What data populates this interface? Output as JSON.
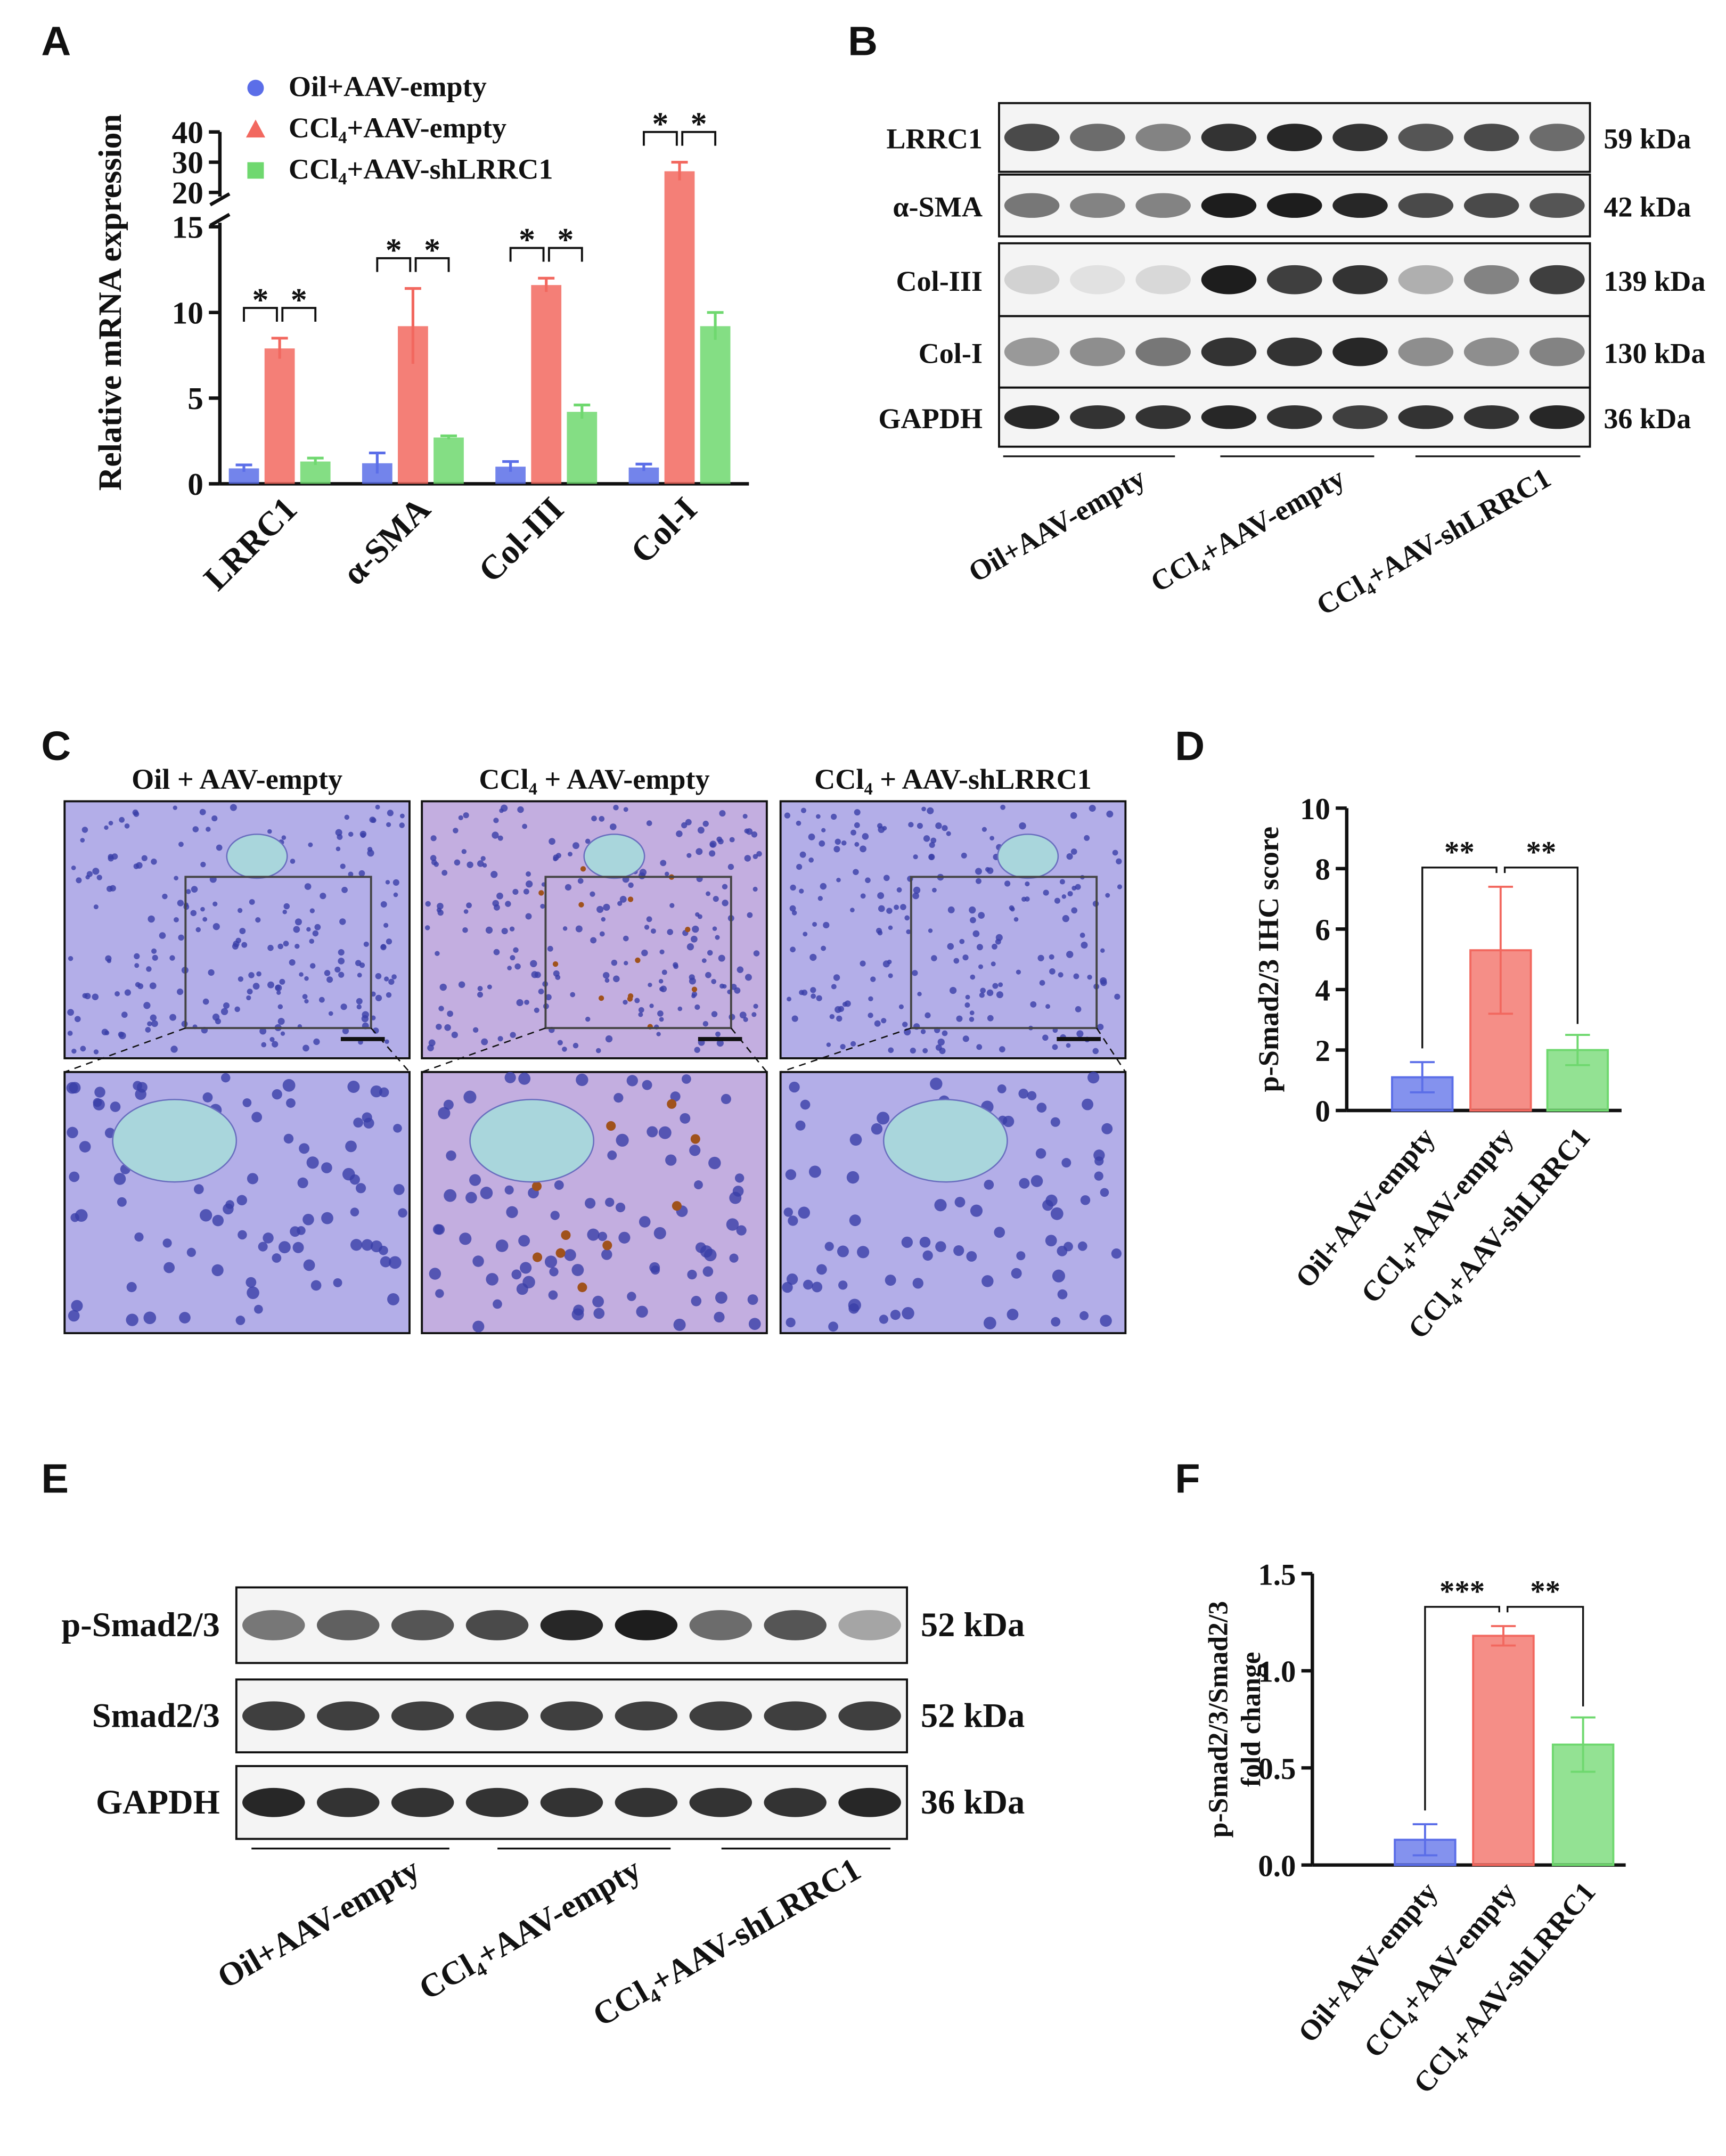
{
  "panel_labels": [
    "A",
    "B",
    "C",
    "D",
    "E",
    "F"
  ],
  "chart_data": [
    {
      "type": "grouped_bar",
      "y_label": "Relative mRNA expression",
      "categories": [
        "LRRC1",
        "α-SMA",
        "Col-III",
        "Col-I"
      ],
      "series": [
        {
          "name": "Oil+AAV-empty",
          "color": "#5b6ee8",
          "marker": "circle",
          "values": [
            0.9,
            1.2,
            1.0,
            0.95
          ],
          "errors": [
            0.2,
            0.6,
            0.3,
            0.2
          ]
        },
        {
          "name": "CCl₄+AAV-empty",
          "color": "#f2685f",
          "marker": "triangle",
          "values": [
            7.9,
            9.2,
            11.6,
            27
          ],
          "errors": [
            0.6,
            2.2,
            0.4,
            3
          ]
        },
        {
          "name": "CCl₄+AAV-shLRRC1",
          "color": "#6fd86f",
          "marker": "square",
          "values": [
            1.3,
            2.7,
            4.2,
            9.2
          ],
          "errors": [
            0.2,
            0.1,
            0.4,
            0.8
          ]
        }
      ],
      "significance": [
        [
          "*",
          "*"
        ],
        [
          "*",
          "*"
        ],
        [
          "*",
          "*"
        ],
        [
          "*",
          "*"
        ]
      ],
      "ylim": [
        0,
        40
      ],
      "axis_break": [
        15,
        20
      ],
      "yticks": [
        0,
        5,
        10,
        15,
        20,
        30,
        40
      ]
    },
    {
      "type": "bar",
      "y_label": "p-Smad2/3 IHC score",
      "categories": [
        "Oil+AAV-empty",
        "CCl₄+AAV-empty",
        "CCl₄+AAV-shLRRC1"
      ],
      "values": [
        1.1,
        5.3,
        2.0
      ],
      "errors": [
        0.5,
        2.1,
        0.5
      ],
      "colors": [
        "#5b6ee8",
        "#f2685f",
        "#6fd86f"
      ],
      "significance": [
        "**",
        "**"
      ],
      "ylim": [
        0,
        10
      ],
      "yticks": [
        0,
        2,
        4,
        6,
        8,
        10
      ]
    },
    {
      "type": "bar",
      "y_label": [
        "p-Smad2/3/Smad2/3",
        "fold change"
      ],
      "categories": [
        "Oil+AAV-empty",
        "CCl₄+AAV-empty",
        "CCl₄+AAV-shLRRC1"
      ],
      "values": [
        0.13,
        1.18,
        0.62
      ],
      "errors": [
        0.08,
        0.05,
        0.14
      ],
      "colors": [
        "#5b6ee8",
        "#f2685f",
        "#6fd86f"
      ],
      "significance": [
        "***",
        "**"
      ],
      "ylim": [
        0,
        1.5
      ],
      "yticks": [
        {
          "value": 0,
          "label": "0.0"
        },
        0.5,
        {
          "value": 1,
          "label": "1.0"
        },
        1.5
      ]
    }
  ],
  "blot_b": {
    "rows": [
      {
        "protein": "LRRC1",
        "size": "59 kDa"
      },
      {
        "protein": "α-SMA",
        "size": "42 kDa"
      },
      {
        "protein": "Col-III",
        "size": "139 kDa"
      },
      {
        "protein": "Col-I",
        "size": "130 kDa"
      },
      {
        "protein": "GAPDH",
        "size": "36 kDa"
      }
    ],
    "groups": [
      "Oil+AAV-empty",
      "CCl₄+AAV-empty",
      "CCl₄+AAV-shLRRC1"
    ]
  },
  "histology_c": {
    "groups": [
      "Oil + AAV-empty",
      "CCl₄ + AAV-empty",
      "CCl₄ + AAV-shLRRC1"
    ]
  },
  "blot_e": {
    "rows": [
      {
        "protein": "p-Smad2/3",
        "size": "52 kDa"
      },
      {
        "protein": "Smad2/3",
        "size": "52 kDa"
      },
      {
        "protein": "GAPDH",
        "size": "36 kDa"
      }
    ],
    "groups": [
      "Oil+AAV-empty",
      "CCl₄+AAV-empty",
      "CCl₄+AAV-shLRRC1"
    ]
  }
}
